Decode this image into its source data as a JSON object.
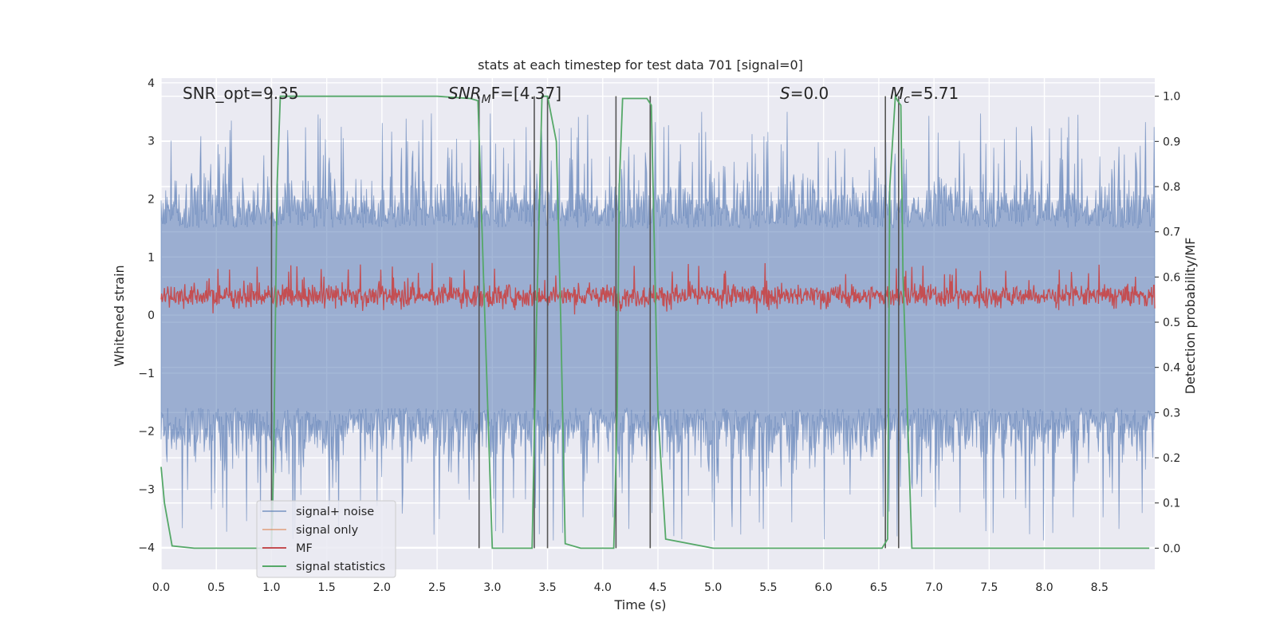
{
  "chart_data": {
    "type": "line",
    "title": "stats at each timestep for test data 701 [signal=0]",
    "xlabel": "Time (s)",
    "ylabel_left": "Whitened strain",
    "ylabel_right": "Detection probability/MF",
    "xlim": [
      0,
      9.0
    ],
    "ylim_left": [
      -4.38,
      4.08
    ],
    "ylim_right": [
      -0.047,
      1.04
    ],
    "x_ticks": [
      "0.0",
      "0.5",
      "1.0",
      "1.5",
      "2.0",
      "2.5",
      "3.0",
      "3.5",
      "4.0",
      "4.5",
      "5.0",
      "5.5",
      "6.0",
      "6.5",
      "7.0",
      "7.5",
      "8.0",
      "8.5"
    ],
    "y_ticks_left": [
      "−4",
      "−3",
      "−2",
      "−1",
      "0",
      "1",
      "2",
      "3",
      "4"
    ],
    "y_ticks_right": [
      "0.0",
      "0.1",
      "0.2",
      "0.3",
      "0.4",
      "0.5",
      "0.6",
      "0.7",
      "0.8",
      "0.9",
      "1.0"
    ],
    "grid": true,
    "legend_position": "lower-left",
    "annotations": {
      "snr_opt_label": "SNR_opt=9.35",
      "snr_mf_base": "SNR",
      "snr_mf_sub": "M",
      "snr_mf_rest": "F=[4.37]",
      "s_label": "S",
      "s_rest": "=0.0",
      "mc_label": "M",
      "mc_sub": "c",
      "mc_rest": "=5.71"
    },
    "series": [
      {
        "name": "signal+ noise",
        "color": "#4c72b0",
        "axis": "left",
        "amplitude_approx": 3.5
      },
      {
        "name": "signal only",
        "color": "#dd8452",
        "axis": "left",
        "values": "flat at 0"
      },
      {
        "name": "MF",
        "color": "#c44e52",
        "axis": "left",
        "range_approx": [
          0.0,
          0.9
        ]
      },
      {
        "name": "signal statistics",
        "color": "#55a868",
        "axis": "right",
        "x": [
          0.0,
          0.03,
          0.1,
          0.3,
          0.8,
          1.0,
          1.02,
          1.05,
          1.08,
          1.3,
          1.8,
          2.5,
          2.8,
          2.87,
          2.92,
          3.0,
          3.1,
          3.3,
          3.36,
          3.4,
          3.45,
          3.5,
          3.58,
          3.62,
          3.66,
          3.8,
          4.1,
          4.13,
          4.15,
          4.18,
          4.3,
          4.4,
          4.44,
          4.5,
          4.57,
          5.0,
          6.0,
          6.53,
          6.58,
          6.6,
          6.65,
          6.67,
          6.7,
          6.72,
          6.8,
          7.5,
          8.5,
          8.95
        ],
        "y": [
          0.18,
          0.1,
          0.005,
          0.0,
          0.0,
          0.0,
          0.2,
          0.8,
          1.0,
          1.0,
          1.0,
          1.0,
          0.995,
          0.99,
          0.6,
          0.0,
          0.0,
          0.0,
          0.0,
          0.5,
          1.0,
          1.0,
          0.9,
          0.5,
          0.01,
          0.0,
          0.0,
          0.3,
          0.8,
          0.995,
          0.995,
          0.995,
          0.98,
          0.3,
          0.02,
          0.0,
          0.0,
          0.0,
          0.02,
          0.8,
          1.0,
          0.99,
          0.98,
          0.6,
          0.0,
          0.0,
          0.0,
          0.0
        ]
      }
    ],
    "vertical_lines_x": [
      1.0,
      2.88,
      3.38,
      3.5,
      4.12,
      4.43,
      6.56,
      6.68
    ]
  }
}
